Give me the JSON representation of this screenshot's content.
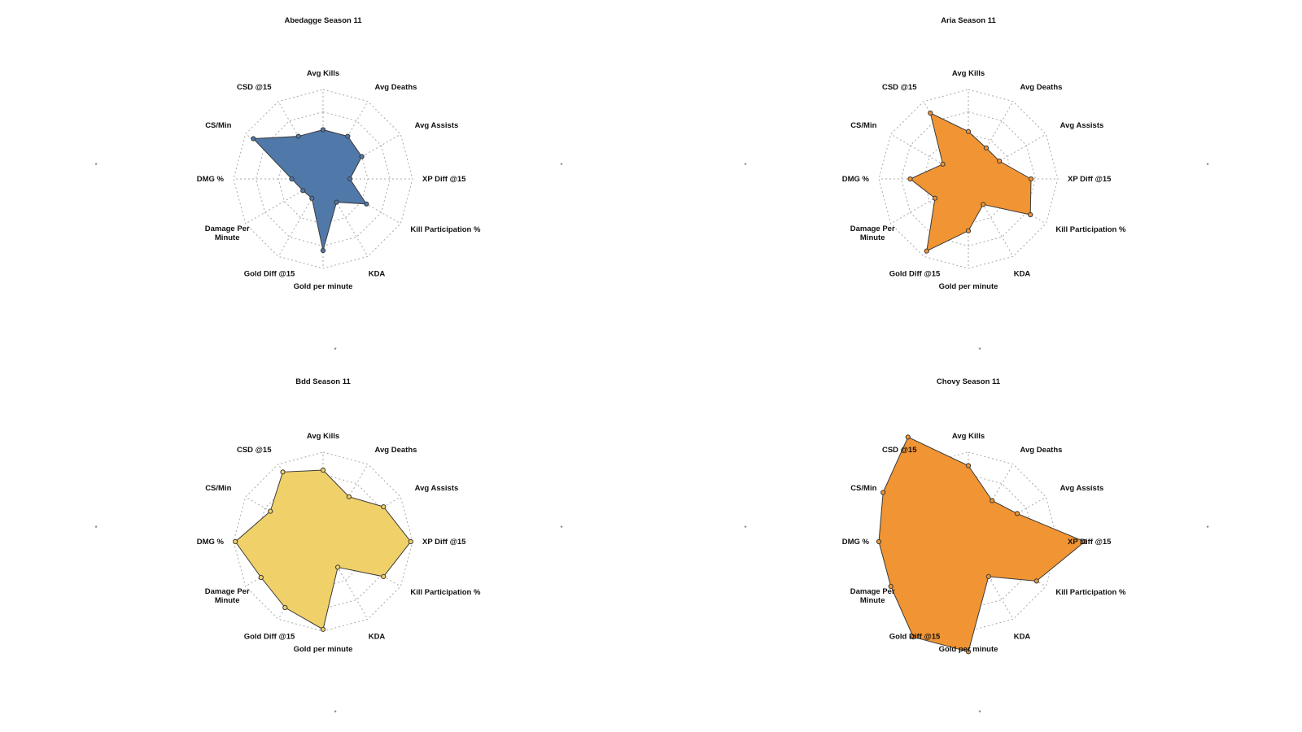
{
  "chart_data": [
    {
      "type": "radar",
      "title": "Abedagge Season 11",
      "color": "#5079a9",
      "axes": [
        "Avg Kills",
        "Avg Deaths",
        "Avg Assists",
        "XP Diff @15",
        "Kill Participation %",
        "KDA",
        "Gold per minute",
        "Gold Diff @15",
        "Damage Per Minute",
        "DMG %",
        "CS/Min",
        "CSD @15"
      ],
      "values": [
        0.55,
        0.55,
        0.5,
        0.3,
        0.56,
        0.3,
        0.8,
        0.25,
        0.26,
        0.35,
        0.9,
        0.55
      ],
      "rmax": 1,
      "rings": 4,
      "grid": true
    },
    {
      "type": "radar",
      "title": "Aria Season 11",
      "color": "#f19433",
      "axes": [
        "Avg Kills",
        "Avg Deaths",
        "Avg Assists",
        "XP Diff @15",
        "Kill Participation %",
        "KDA",
        "Gold per minute",
        "Gold Diff @15",
        "Damage Per Minute",
        "DMG %",
        "CS/Min",
        "CSD @15"
      ],
      "values": [
        0.53,
        0.4,
        0.4,
        0.7,
        0.8,
        0.33,
        0.58,
        0.93,
        0.43,
        0.65,
        0.33,
        0.85
      ],
      "rmax": 1,
      "rings": 4,
      "grid": true
    },
    {
      "type": "radar",
      "title": "Bdd Season 11",
      "color": "#f0d069",
      "axes": [
        "Avg Kills",
        "Avg Deaths",
        "Avg Assists",
        "XP Diff @15",
        "Kill Participation %",
        "KDA",
        "Gold per minute",
        "Gold Diff @15",
        "Damage Per Minute",
        "DMG %",
        "CS/Min",
        "CSD @15"
      ],
      "values": [
        0.8,
        0.58,
        0.78,
        0.98,
        0.78,
        0.33,
        0.98,
        0.85,
        0.8,
        0.98,
        0.68,
        0.9
      ],
      "rmax": 1,
      "rings": 4,
      "grid": true
    },
    {
      "type": "radar",
      "title": "Chovy Season 11",
      "color": "#f19433",
      "axes": [
        "Avg Kills",
        "Avg Deaths",
        "Avg Assists",
        "XP Diff @15",
        "Kill Participation %",
        "KDA",
        "Gold per minute",
        "Gold Diff @15",
        "Damage Per Minute",
        "DMG %",
        "CS/Min",
        "CSD @15"
      ],
      "values": [
        0.85,
        0.53,
        0.63,
        1.3,
        0.88,
        0.45,
        1.23,
        1.23,
        1.0,
        1.0,
        1.1,
        1.35
      ],
      "rmax": 1,
      "rings": 4,
      "grid": true
    }
  ],
  "glyph": "*"
}
